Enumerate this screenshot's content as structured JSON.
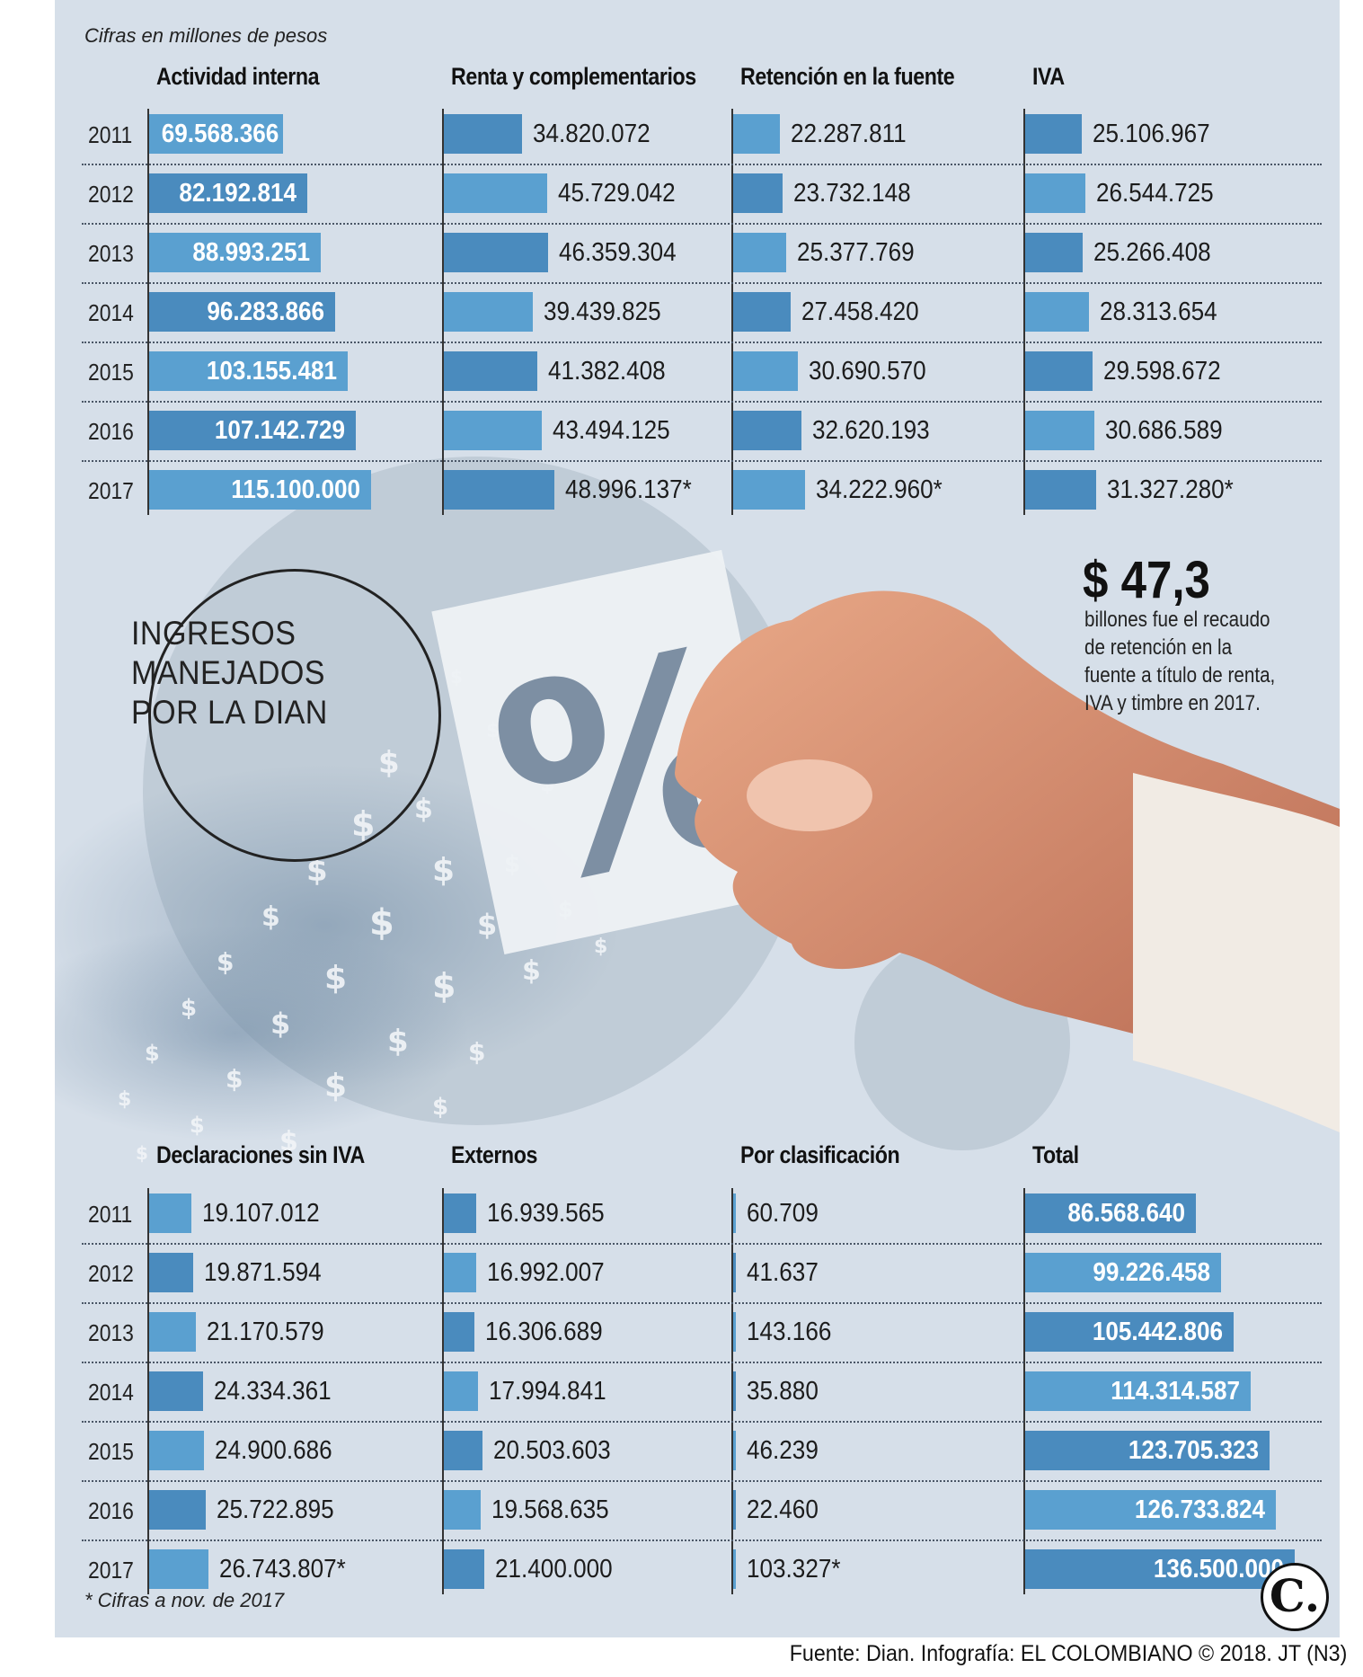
{
  "header": {
    "units_note": "Cifras en millones de pesos",
    "footnote": "* Cifras a nov. de 2017",
    "source": "Fuente: Dian. Infografía: EL COLOMBIANO © 2018. JT (N3)",
    "logo_letter": "C."
  },
  "title": {
    "line1": "INGRESOS",
    "line2": "MANEJADOS",
    "line3": "POR LA DIAN"
  },
  "highlight": {
    "amount": "$ 47,3",
    "line1": "billones fue el recaudo",
    "line2": "de retención en la",
    "line3": "fuente a título de renta,",
    "line4": "IVA y timbre en 2017."
  },
  "colors": {
    "panel": "#d6dfe9",
    "bar_light": "#5aa0d0",
    "bar_dark": "#4a8bbe",
    "circle_watermark": "#a9b6c4"
  },
  "chart_data": [
    {
      "type": "bar",
      "orientation": "horizontal",
      "categories": [
        "2011",
        "2012",
        "2013",
        "2014",
        "2015",
        "2016",
        "2017"
      ],
      "series": [
        {
          "name": "Actividad interna",
          "values": [
            69568366,
            82192814,
            88993251,
            96283866,
            103155481,
            107142729,
            115100000
          ],
          "labels": [
            "69.568.366",
            "82.192.814",
            "88.993.251",
            "96.283.866",
            "103.155.481",
            "107.142.729",
            "115.100.000"
          ]
        },
        {
          "name": "Renta y complementarios",
          "values": [
            34820072,
            45729042,
            46359304,
            39439825,
            41382408,
            43494125,
            48996137
          ],
          "labels": [
            "34.820.072",
            "45.729.042",
            "46.359.304",
            "39.439.825",
            "41.382.408",
            "43.494.125",
            "48.996.137*"
          ]
        },
        {
          "name": "Retención en la fuente",
          "values": [
            22287811,
            23732148,
            25377769,
            27458420,
            30690570,
            32620193,
            34222960
          ],
          "labels": [
            "22.287.811",
            "23.732.148",
            "25.377.769",
            "27.458.420",
            "30.690.570",
            "32.620.193",
            "34.222.960*"
          ]
        },
        {
          "name": "IVA",
          "values": [
            25106967,
            26544725,
            25266408,
            28313654,
            29598672,
            30686589,
            31327280
          ],
          "labels": [
            "25.106.967",
            "26.544.725",
            "25.266.408",
            "28.313.654",
            "29.598.672",
            "30.686.589",
            "31.327.280*"
          ]
        }
      ]
    },
    {
      "type": "bar",
      "orientation": "horizontal",
      "categories": [
        "2011",
        "2012",
        "2013",
        "2014",
        "2015",
        "2016",
        "2017"
      ],
      "series": [
        {
          "name": "Declaraciones sin IVA",
          "values": [
            19107012,
            19871594,
            21170579,
            24334361,
            24900686,
            25722895,
            26743807
          ],
          "labels": [
            "19.107.012",
            "19.871.594",
            "21.170.579",
            "24.334.361",
            "24.900.686",
            "25.722.895",
            "26.743.807*"
          ]
        },
        {
          "name": "Externos",
          "values": [
            16939565,
            16992007,
            16306689,
            17994841,
            20503603,
            19568635,
            21400000
          ],
          "labels": [
            "16.939.565",
            "16.992.007",
            "16.306.689",
            "17.994.841",
            "20.503.603",
            "19.568.635",
            "21.400.000"
          ]
        },
        {
          "name": "Por clasificación",
          "values": [
            60709,
            41637,
            143166,
            35880,
            46239,
            22460,
            103327
          ],
          "labels": [
            "60.709",
            "41.637",
            "143.166",
            "35.880",
            "46.239",
            "22.460",
            "103.327*"
          ]
        },
        {
          "name": "Total",
          "values": [
            86568640,
            99226458,
            105442806,
            114314587,
            123705323,
            126733824,
            136500000
          ],
          "labels": [
            "86.568.640",
            "99.226.458",
            "105.442.806",
            "114.314.587",
            "123.705.323",
            "126.733.824",
            "136.500.000"
          ]
        }
      ]
    }
  ]
}
